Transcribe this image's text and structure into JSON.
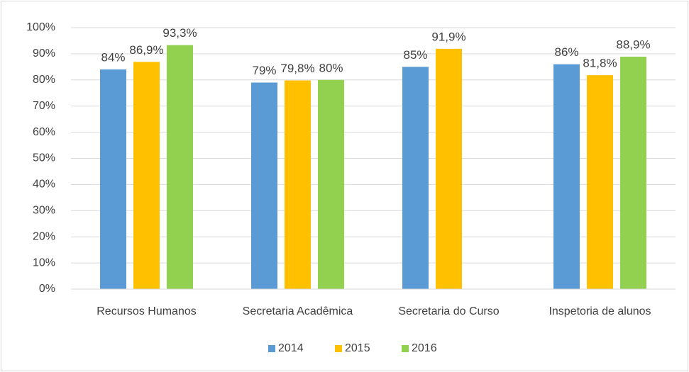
{
  "chart_data": {
    "type": "bar",
    "categories": [
      "Recursos Humanos",
      "Secretaria Acadêmica",
      "Secretaria do Curso",
      "Inspetoria de alunos"
    ],
    "series": [
      {
        "name": "2014",
        "color": "#5b9bd5",
        "values": [
          84,
          79,
          85,
          86
        ],
        "value_labels": [
          "84%",
          "79%",
          "85%",
          "86%"
        ]
      },
      {
        "name": "2015",
        "color": "#ffc000",
        "values": [
          86.9,
          79.8,
          91.9,
          81.8
        ],
        "value_labels": [
          "86,9%",
          "79,8%",
          "91,9%",
          "81,8%"
        ]
      },
      {
        "name": "2016",
        "color": "#92d050",
        "values": [
          93.3,
          80,
          null,
          88.9
        ],
        "value_labels": [
          "93,3%",
          "80%",
          null,
          "88,9%"
        ]
      }
    ],
    "ylim": [
      0,
      100
    ],
    "yticks": [
      {
        "value": 0,
        "label": "0%"
      },
      {
        "value": 10,
        "label": "10%"
      },
      {
        "value": 20,
        "label": "20%"
      },
      {
        "value": 30,
        "label": "30%"
      },
      {
        "value": 40,
        "label": "40%"
      },
      {
        "value": 50,
        "label": "50%"
      },
      {
        "value": 60,
        "label": "60%"
      },
      {
        "value": 70,
        "label": "70%"
      },
      {
        "value": 80,
        "label": "80%"
      },
      {
        "value": 90,
        "label": "90%"
      },
      {
        "value": 100,
        "label": "100%"
      }
    ],
    "grid": true,
    "legend": "bottom"
  }
}
